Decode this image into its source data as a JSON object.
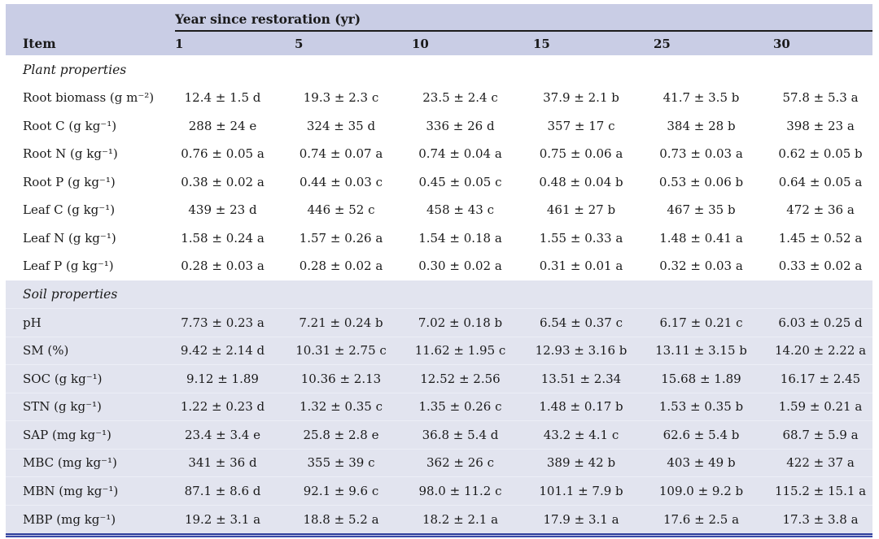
{
  "colors": {
    "header_bg": "#c9cde5",
    "soil_section_bg": "#e2e4ef",
    "spanner_rule": "#1c1c1c",
    "bottom_rule_blue": "#2e3e9b"
  },
  "table": {
    "header": {
      "group_label": "Year since restoration (yr)",
      "item_label": "Item",
      "years": [
        "1",
        "5",
        "10",
        "15",
        "25",
        "30"
      ]
    },
    "sections": [
      {
        "title": "Plant properties",
        "rows": [
          {
            "label": "Root biomass (g m⁻²)",
            "values": [
              "12.4 ± 1.5 d",
              "19.3 ± 2.3 c",
              "23.5 ± 2.4 c",
              "37.9 ± 2.1 b",
              "41.7 ± 3.5 b",
              "57.8 ± 5.3 a"
            ]
          },
          {
            "label": "Root C (g kg⁻¹)",
            "values": [
              "288 ± 24 e",
              "324 ± 35 d",
              "336 ± 26 d",
              "357 ± 17 c",
              "384 ± 28 b",
              "398 ± 23 a"
            ]
          },
          {
            "label": "Root N (g kg⁻¹)",
            "values": [
              "0.76 ± 0.05 a",
              "0.74 ± 0.07 a",
              "0.74 ± 0.04 a",
              "0.75 ± 0.06 a",
              "0.73 ± 0.03 a",
              "0.62 ± 0.05 b"
            ]
          },
          {
            "label": "Root P (g kg⁻¹)",
            "values": [
              "0.38 ± 0.02 a",
              "0.44 ± 0.03 c",
              "0.45 ± 0.05 c",
              "0.48 ± 0.04 b",
              "0.53 ± 0.06 b",
              "0.64 ± 0.05 a"
            ]
          },
          {
            "label": "Leaf C (g kg⁻¹)",
            "values": [
              "439 ± 23 d",
              "446 ± 52 c",
              "458 ± 43 c",
              "461 ± 27 b",
              "467 ± 35 b",
              "472 ± 36 a"
            ]
          },
          {
            "label": "Leaf N (g kg⁻¹)",
            "values": [
              "1.58 ± 0.24 a",
              "1.57 ± 0.26 a",
              "1.54 ± 0.18 a",
              "1.55 ± 0.33 a",
              "1.48 ± 0.41 a",
              "1.45 ± 0.52 a"
            ]
          },
          {
            "label": "Leaf P (g kg⁻¹)",
            "values": [
              "0.28 ± 0.03 a",
              "0.28 ± 0.02 a",
              "0.30 ± 0.02 a",
              "0.31 ± 0.01 a",
              "0.32 ± 0.03 a",
              "0.33 ± 0.02 a"
            ]
          }
        ]
      },
      {
        "title": "Soil properties",
        "rows": [
          {
            "label": "pH",
            "values": [
              "7.73 ± 0.23 a",
              "7.21 ± 0.24 b",
              "7.02 ± 0.18 b",
              "6.54 ± 0.37 c",
              "6.17 ± 0.21 c",
              "6.03 ± 0.25 d"
            ]
          },
          {
            "label": "SM (%)",
            "values": [
              "9.42 ± 2.14 d",
              "10.31 ± 2.75 c",
              "11.62 ± 1.95 c",
              "12.93 ± 3.16 b",
              "13.11 ± 3.15 b",
              "14.20 ± 2.22 a"
            ]
          },
          {
            "label": "SOC (g kg⁻¹)",
            "values": [
              "9.12 ± 1.89",
              "10.36 ± 2.13",
              "12.52 ± 2.56",
              "13.51 ± 2.34",
              "15.68 ± 1.89",
              "16.17 ± 2.45"
            ]
          },
          {
            "label": "STN (g kg⁻¹)",
            "values": [
              "1.22 ± 0.23 d",
              "1.32 ± 0.35 c",
              "1.35 ± 0.26 c",
              "1.48 ± 0.17 b",
              "1.53 ± 0.35 b",
              "1.59 ± 0.21 a"
            ]
          },
          {
            "label": "SAP (mg kg⁻¹)",
            "values": [
              "23.4 ± 3.4 e",
              "25.8 ± 2.8 e",
              "36.8 ± 5.4 d",
              "43.2 ± 4.1 c",
              "62.6 ± 5.4 b",
              "68.7 ± 5.9 a"
            ]
          },
          {
            "label": "MBC (mg kg⁻¹)",
            "values": [
              "341 ± 36 d",
              "355 ± 39 c",
              "362 ± 26 c",
              "389 ± 42 b",
              "403 ± 49 b",
              "422 ± 37 a"
            ]
          },
          {
            "label": "MBN (mg kg⁻¹)",
            "values": [
              "87.1 ± 8.6 d",
              "92.1 ± 9.6 c",
              "98.0 ± 11.2 c",
              "101.1 ± 7.9 b",
              "109.0 ± 9.2 b",
              "115.2 ± 15.1 a"
            ]
          },
          {
            "label": "MBP (mg kg⁻¹)",
            "values": [
              "19.2 ± 3.1 a",
              "18.8 ± 5.2 a",
              "18.2 ± 2.1 a",
              "17.9 ± 3.1 a",
              "17.6 ± 2.5 a",
              "17.3 ± 3.8 a"
            ]
          }
        ]
      }
    ]
  }
}
